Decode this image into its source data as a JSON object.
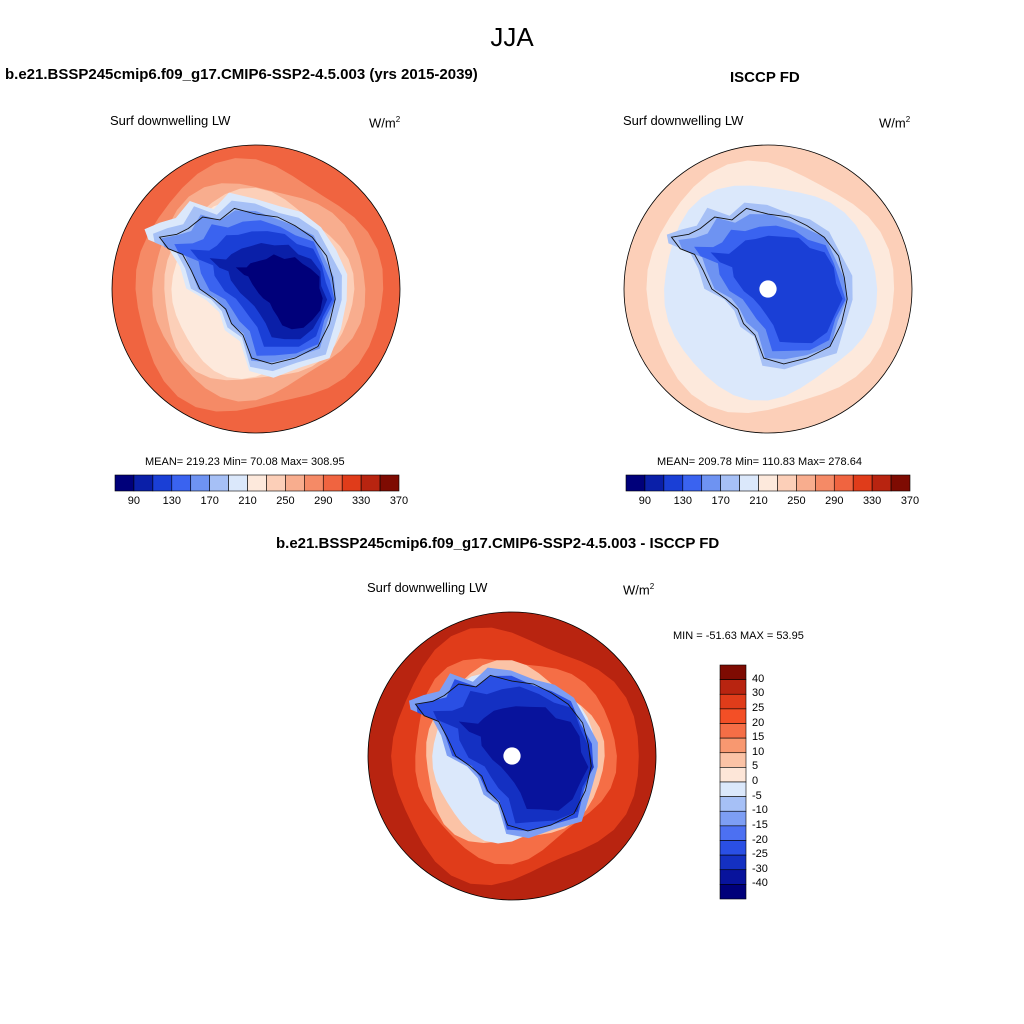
{
  "title": "JJA",
  "panels": [
    {
      "id": "model",
      "title": "b.e21.BSSP245cmip6.f09_g17.CMIP6-SSP2-4.5.003 (yrs 2015-2039)",
      "variable": "Surf downwelling LW",
      "units_base": "W/m",
      "units_exp": "2",
      "stats": "MEAN= 219.23  Min=  70.08  Max= 308.95",
      "colorbar_ticks": [
        "90",
        "130",
        "170",
        "210",
        "250",
        "290",
        "330",
        "370"
      ]
    },
    {
      "id": "obs",
      "title": "ISCCP FD",
      "variable": "Surf downwelling LW",
      "units_base": "W/m",
      "units_exp": "2",
      "stats": "MEAN= 209.78  Min= 110.83  Max= 278.64",
      "colorbar_ticks": [
        "90",
        "130",
        "170",
        "210",
        "250",
        "290",
        "330",
        "370"
      ]
    },
    {
      "id": "diff",
      "title": "b.e21.BSSP245cmip6.f09_g17.CMIP6-SSP2-4.5.003 - ISCCP FD",
      "variable": "Surf downwelling LW",
      "units_base": "W/m",
      "units_exp": "2",
      "stats": "MIN = -51.63 MAX =  53.95",
      "colorbar_ticks": [
        "40",
        "30",
        "25",
        "20",
        "15",
        "10",
        "5",
        "0",
        "-5",
        "-10",
        "-15",
        "-20",
        "-25",
        "-30",
        "-40"
      ]
    }
  ],
  "colors": {
    "abs_scale": [
      "#00007a",
      "#0a1fa8",
      "#1a3fd6",
      "#3a63f0",
      "#6e93f2",
      "#a6c0f6",
      "#dbe8fb",
      "#fde9dc",
      "#fccfb8",
      "#f8ad8e",
      "#f58a66",
      "#f06440",
      "#e03c1a",
      "#b82410",
      "#7e0b02"
    ],
    "diff_scale": [
      "#7e0b02",
      "#b82410",
      "#e03c1a",
      "#f34f26",
      "#f56e46",
      "#f89870",
      "#fbc3a6",
      "#fde6d8",
      "#dbe8fb",
      "#a6c0f6",
      "#7d9ef4",
      "#4c70f2",
      "#2a4fe4",
      "#1430c2",
      "#08139c",
      "#00007a"
    ]
  }
}
